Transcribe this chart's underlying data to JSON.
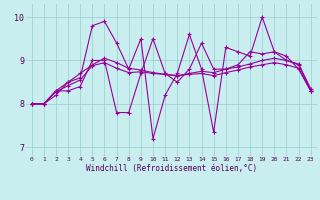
{
  "xlabel": "Windchill (Refroidissement éolien,°C)",
  "background_color": "#c8eef0",
  "grid_color": "#99cccc",
  "line_color": "#990099",
  "xlim": [
    -0.5,
    23.5
  ],
  "ylim": [
    6.8,
    10.3
  ],
  "yticks": [
    7,
    8,
    9,
    10
  ],
  "xticks": [
    0,
    1,
    2,
    3,
    4,
    5,
    6,
    7,
    8,
    9,
    10,
    11,
    12,
    13,
    14,
    15,
    16,
    17,
    18,
    19,
    20,
    21,
    22,
    23
  ],
  "series": [
    [
      8.0,
      8.0,
      8.3,
      8.3,
      8.4,
      9.0,
      9.0,
      7.8,
      7.8,
      8.7,
      9.5,
      8.7,
      8.5,
      8.8,
      9.4,
      8.8,
      8.8,
      8.9,
      9.2,
      9.15,
      9.2,
      9.0,
      8.9,
      8.3
    ],
    [
      8.0,
      8.0,
      8.2,
      8.5,
      8.6,
      9.8,
      9.9,
      9.4,
      8.8,
      9.5,
      7.2,
      8.2,
      8.7,
      9.6,
      8.8,
      7.35,
      9.3,
      9.2,
      9.1,
      10.0,
      9.2,
      9.1,
      8.8,
      8.3
    ],
    [
      8.0,
      8.0,
      8.3,
      8.5,
      8.7,
      8.9,
      9.05,
      8.95,
      8.82,
      8.78,
      8.72,
      8.68,
      8.65,
      8.7,
      8.75,
      8.72,
      8.8,
      8.85,
      8.92,
      9.0,
      9.05,
      9.0,
      8.92,
      8.35
    ],
    [
      8.0,
      8.0,
      8.28,
      8.42,
      8.55,
      8.88,
      8.95,
      8.82,
      8.72,
      8.74,
      8.7,
      8.68,
      8.65,
      8.68,
      8.7,
      8.65,
      8.72,
      8.78,
      8.85,
      8.9,
      8.95,
      8.9,
      8.82,
      8.3
    ]
  ]
}
